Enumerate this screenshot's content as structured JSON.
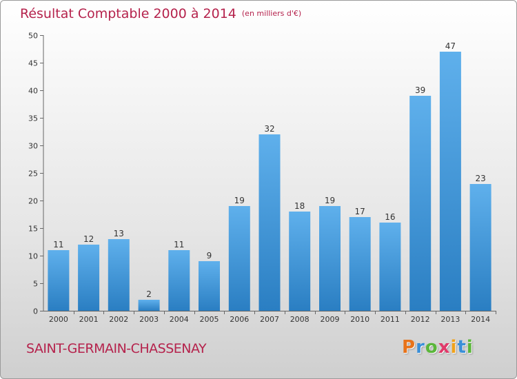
{
  "title": "Résultat Comptable 2000 à 2014",
  "unit": "(en milliers d'€)",
  "commune": "SAINT-GERMAIN-CHASSENAY",
  "logo": [
    "P",
    "r",
    "o",
    "x",
    "i",
    "t",
    "i"
  ],
  "logo_colors": [
    "#e8731a",
    "#3a8fd8",
    "#5ab63a",
    "#e03a6a",
    "#f0a21a",
    "#3a8fd8",
    "#5ab63a"
  ],
  "colors": {
    "bar_top": "#5fb0ec",
    "bar_bottom": "#2a7ec2",
    "title": "#b5224c"
  },
  "chart_data": {
    "type": "bar",
    "categories": [
      "2000",
      "2001",
      "2002",
      "2003",
      "2004",
      "2005",
      "2006",
      "2007",
      "2008",
      "2009",
      "2010",
      "2011",
      "2012",
      "2013",
      "2014"
    ],
    "values": [
      11,
      12,
      13,
      2,
      11,
      9,
      19,
      32,
      18,
      19,
      17,
      16,
      39,
      47,
      23
    ],
    "ylim": [
      0,
      50
    ],
    "yticks": [
      0,
      5,
      10,
      15,
      20,
      25,
      30,
      35,
      40,
      45,
      50
    ],
    "grid": false
  }
}
